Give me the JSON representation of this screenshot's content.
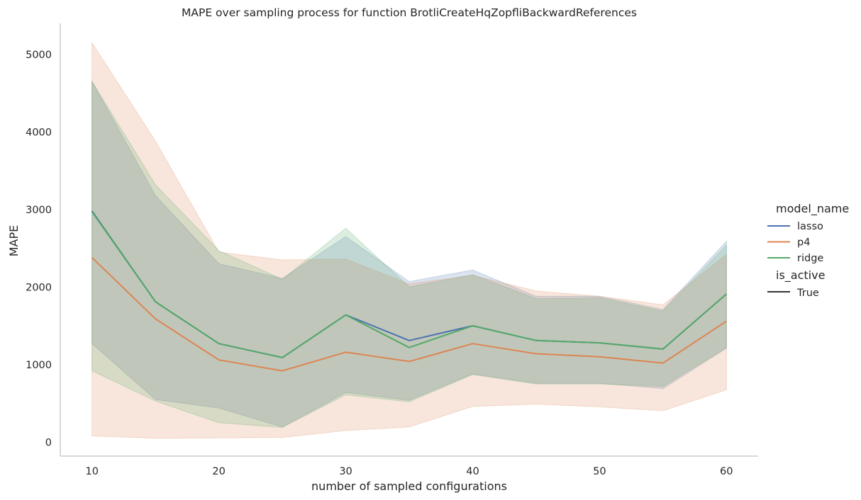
{
  "chart_data": {
    "type": "line",
    "title": "MAPE over sampling process for function BrotliCreateHqZopfliBackwardReferences",
    "xlabel": "number of sampled configurations",
    "ylabel": "MAPE",
    "x": [
      10,
      15,
      20,
      25,
      30,
      35,
      40,
      45,
      50,
      55,
      60
    ],
    "xticks": [
      10,
      20,
      30,
      40,
      50,
      60
    ],
    "yticks": [
      0,
      1000,
      2000,
      3000,
      4000,
      5000
    ],
    "xlim": [
      7.5,
      62.5
    ],
    "ylim": [
      -180,
      5400
    ],
    "grid": false,
    "legend": {
      "placement": "right",
      "hue_title": "model_name",
      "style_title": "is_active",
      "style_entries": [
        "True"
      ]
    },
    "series": [
      {
        "name": "lasso",
        "color": "#4c72b0",
        "values": [
          2980,
          1810,
          1270,
          1090,
          1640,
          1310,
          1500,
          1310,
          1280,
          1200,
          1910
        ],
        "ci_upper": [
          4650,
          3180,
          2300,
          2110,
          2650,
          2070,
          2220,
          1880,
          1880,
          1710,
          2590
        ],
        "ci_lower": [
          1270,
          550,
          440,
          195,
          640,
          540,
          880,
          760,
          760,
          690,
          1210
        ]
      },
      {
        "name": "p4",
        "color": "#dd8452",
        "values": [
          2380,
          1590,
          1060,
          920,
          1160,
          1040,
          1270,
          1140,
          1100,
          1020,
          1560
        ],
        "ci_upper": [
          5150,
          3880,
          2450,
          2350,
          2360,
          2040,
          2150,
          1950,
          1880,
          1770,
          2420
        ],
        "ci_lower": [
          80,
          50,
          55,
          60,
          150,
          195,
          460,
          490,
          455,
          405,
          675
        ]
      },
      {
        "name": "ridge",
        "color": "#55a868",
        "values": [
          2970,
          1810,
          1270,
          1090,
          1640,
          1220,
          1500,
          1310,
          1280,
          1200,
          1910
        ],
        "ci_upper": [
          4650,
          3320,
          2470,
          2100,
          2760,
          2000,
          2160,
          1850,
          1860,
          1690,
          2540
        ],
        "ci_lower": [
          920,
          530,
          250,
          190,
          610,
          520,
          870,
          750,
          750,
          720,
          1220
        ]
      }
    ]
  }
}
